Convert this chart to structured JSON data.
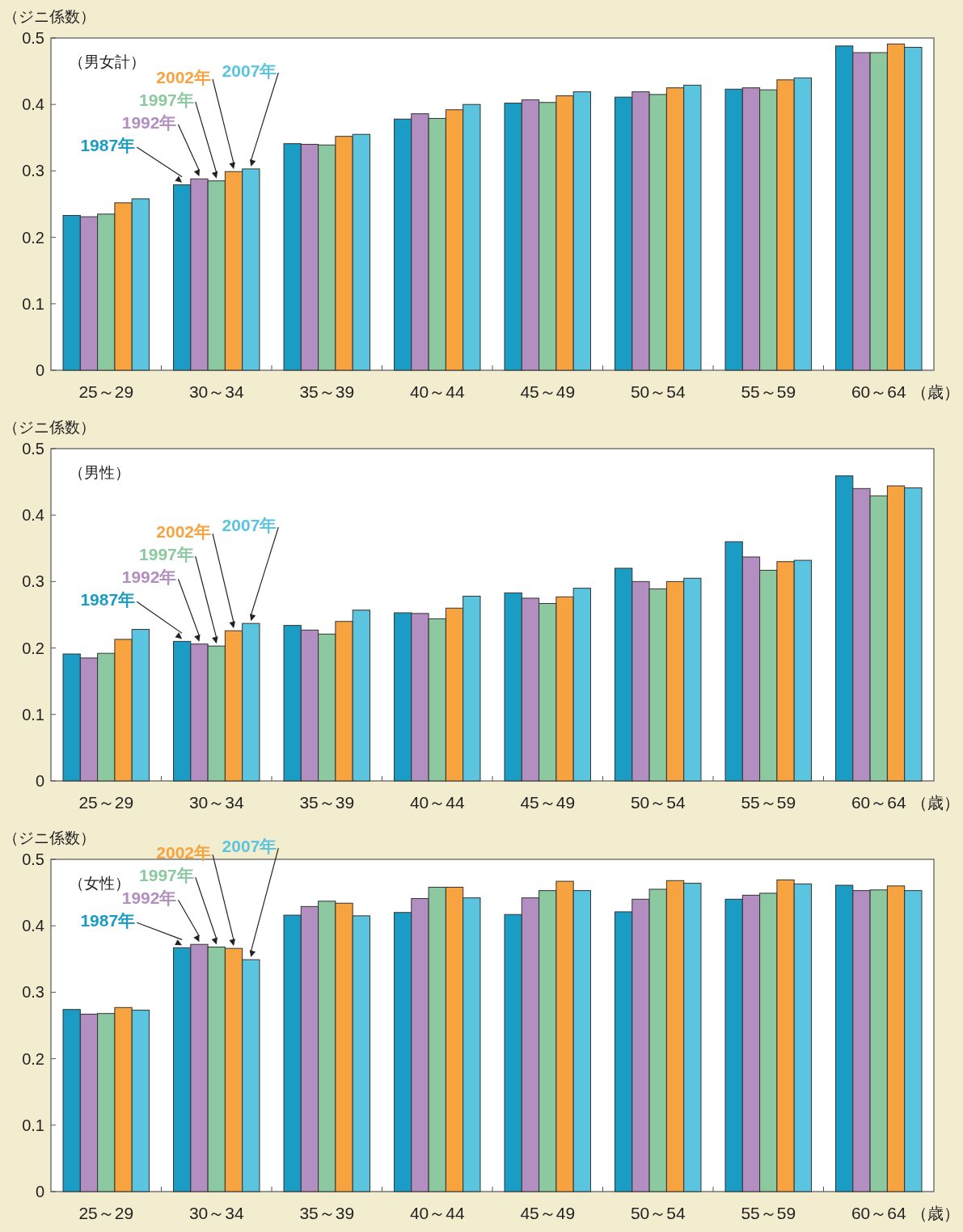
{
  "chart_data": [
    {
      "type": "bar",
      "title": "（男女計）",
      "ylabel": "（ジニ係数）",
      "xlabel": "（歳）",
      "categories": [
        "25～29",
        "30～34",
        "35～39",
        "40～44",
        "45～49",
        "50～54",
        "55～59",
        "60～64"
      ],
      "ylim": [
        0,
        0.5
      ],
      "yticks": [
        0,
        0.1,
        0.2,
        0.3,
        0.4,
        0.5
      ],
      "series": [
        {
          "name": "1987年",
          "color": "#1a9cc4",
          "values": [
            0.233,
            0.279,
            0.341,
            0.378,
            0.402,
            0.411,
            0.423,
            0.488
          ]
        },
        {
          "name": "1992年",
          "color": "#b38ec0",
          "values": [
            0.231,
            0.288,
            0.34,
            0.386,
            0.407,
            0.419,
            0.425,
            0.478
          ]
        },
        {
          "name": "1997年",
          "color": "#8cc9a0",
          "values": [
            0.235,
            0.285,
            0.339,
            0.379,
            0.403,
            0.415,
            0.422,
            0.478
          ]
        },
        {
          "name": "2002年",
          "color": "#f7a440",
          "values": [
            0.252,
            0.299,
            0.352,
            0.392,
            0.413,
            0.425,
            0.437,
            0.491
          ]
        },
        {
          "name": "2007年",
          "color": "#5bc5e0",
          "values": [
            0.258,
            0.303,
            0.355,
            0.4,
            0.419,
            0.429,
            0.44,
            0.486
          ]
        }
      ]
    },
    {
      "type": "bar",
      "title": "（男性）",
      "ylabel": "（ジニ係数）",
      "xlabel": "（歳）",
      "categories": [
        "25～29",
        "30～34",
        "35～39",
        "40～44",
        "45～49",
        "50～54",
        "55～59",
        "60～64"
      ],
      "ylim": [
        0,
        0.5
      ],
      "yticks": [
        0,
        0.1,
        0.2,
        0.3,
        0.4,
        0.5
      ],
      "series": [
        {
          "name": "1987年",
          "color": "#1a9cc4",
          "values": [
            0.191,
            0.21,
            0.234,
            0.253,
            0.283,
            0.32,
            0.36,
            0.459
          ]
        },
        {
          "name": "1992年",
          "color": "#b38ec0",
          "values": [
            0.185,
            0.206,
            0.227,
            0.252,
            0.275,
            0.3,
            0.337,
            0.44
          ]
        },
        {
          "name": "1997年",
          "color": "#8cc9a0",
          "values": [
            0.192,
            0.203,
            0.221,
            0.244,
            0.267,
            0.289,
            0.317,
            0.429
          ]
        },
        {
          "name": "2002年",
          "color": "#f7a440",
          "values": [
            0.213,
            0.226,
            0.24,
            0.26,
            0.277,
            0.3,
            0.33,
            0.444
          ]
        },
        {
          "name": "2007年",
          "color": "#5bc5e0",
          "values": [
            0.228,
            0.237,
            0.257,
            0.278,
            0.29,
            0.305,
            0.332,
            0.441
          ]
        }
      ]
    },
    {
      "type": "bar",
      "title": "（女性）",
      "ylabel": "（ジニ係数）",
      "xlabel": "（歳）",
      "categories": [
        "25～29",
        "30～34",
        "35～39",
        "40～44",
        "45～49",
        "50～54",
        "55～59",
        "60～64"
      ],
      "ylim": [
        0,
        0.5
      ],
      "yticks": [
        0,
        0.1,
        0.2,
        0.3,
        0.4,
        0.5
      ],
      "series": [
        {
          "name": "1987年",
          "color": "#1a9cc4",
          "values": [
            0.274,
            0.367,
            0.416,
            0.42,
            0.417,
            0.421,
            0.44,
            0.461
          ]
        },
        {
          "name": "1992年",
          "color": "#b38ec0",
          "values": [
            0.267,
            0.372,
            0.429,
            0.441,
            0.442,
            0.44,
            0.446,
            0.453
          ]
        },
        {
          "name": "1997年",
          "color": "#8cc9a0",
          "values": [
            0.268,
            0.368,
            0.437,
            0.458,
            0.453,
            0.455,
            0.449,
            0.454
          ]
        },
        {
          "name": "2002年",
          "color": "#f7a440",
          "values": [
            0.277,
            0.366,
            0.434,
            0.458,
            0.467,
            0.468,
            0.469,
            0.46
          ]
        },
        {
          "name": "2007年",
          "color": "#5bc5e0",
          "values": [
            0.273,
            0.349,
            0.415,
            0.442,
            0.453,
            0.464,
            0.463,
            0.453
          ]
        }
      ]
    }
  ]
}
